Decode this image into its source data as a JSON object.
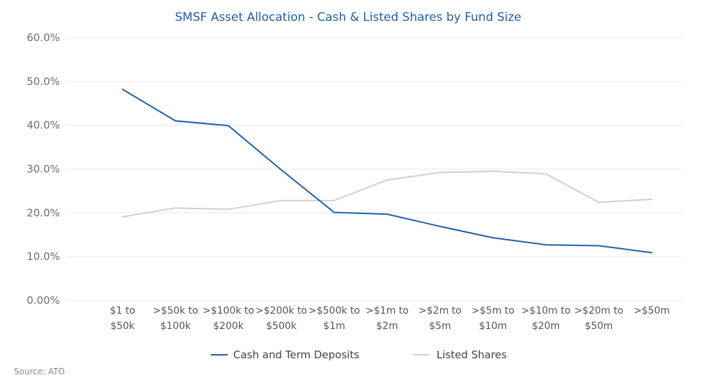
{
  "chart_data": {
    "type": "line",
    "title": "SMSF Asset Allocation - Cash & Listed Shares by Fund Size",
    "xlabel": "",
    "ylabel": "",
    "categories": [
      [
        "$1 to",
        "$50k"
      ],
      [
        ">$50k to",
        "$100k"
      ],
      [
        ">$100k to",
        "$200k"
      ],
      [
        ">$200k to",
        "$500k"
      ],
      [
        ">$500k to",
        "$1m"
      ],
      [
        ">$1m to",
        "$2m"
      ],
      [
        ">$2m to",
        "$5m"
      ],
      [
        ">$5m to",
        "$10m"
      ],
      [
        ">$10m to",
        "$20m"
      ],
      [
        ">$20m to",
        "$50m"
      ],
      [
        ">$50m"
      ]
    ],
    "yticks": [
      "0.00%",
      "10.0%",
      "20.0%",
      "30.0%",
      "40.0%",
      "50.0%",
      "60.0%"
    ],
    "ylim": [
      0,
      60
    ],
    "grid": true,
    "legend_position": "bottom",
    "series": [
      {
        "name": "Cash and Term Deposits",
        "color": "#1f5fa8",
        "values": [
          48.2,
          41.0,
          39.9,
          29.8,
          20.1,
          19.7,
          16.9,
          14.3,
          12.7,
          12.5,
          10.9
        ]
      },
      {
        "name": "Listed Shares",
        "color": "#d0d0d0",
        "values": [
          19.1,
          21.1,
          20.8,
          22.8,
          22.8,
          27.5,
          29.2,
          29.5,
          28.9,
          22.4,
          23.1
        ]
      }
    ]
  },
  "source": "Source: ATO"
}
